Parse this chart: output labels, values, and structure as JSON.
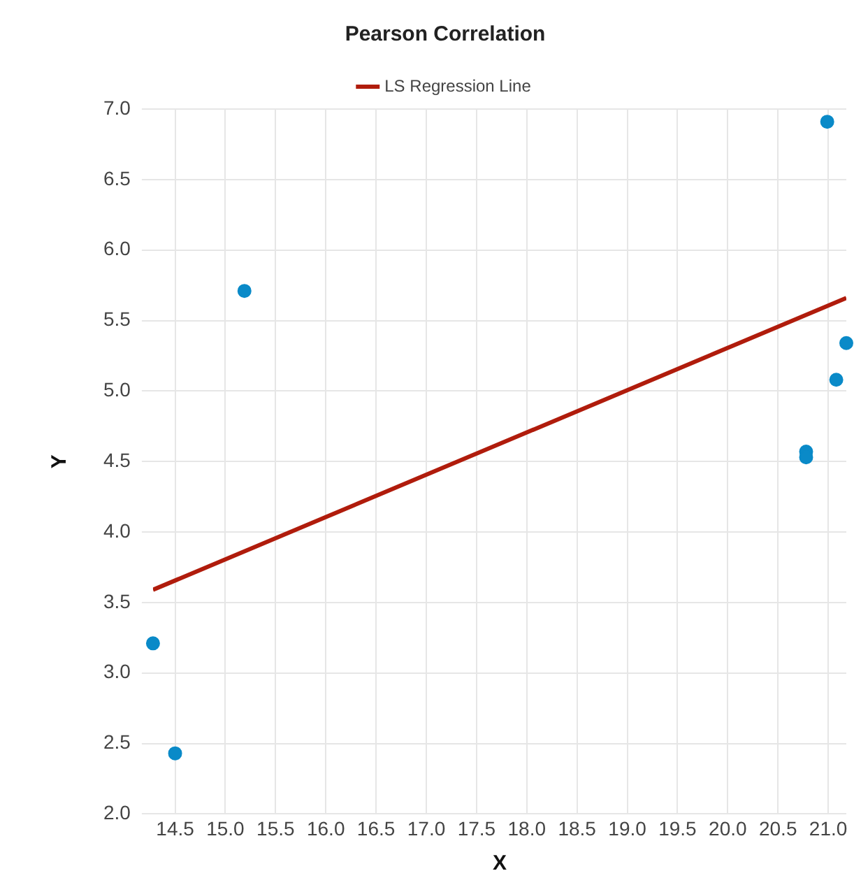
{
  "chart_data": {
    "type": "scatter",
    "title": "Pearson Correlation",
    "xlabel": "X",
    "ylabel": "Y",
    "xlim": [
      14.28,
      21.18
    ],
    "ylim": [
      2,
      7
    ],
    "xticks": [
      14.5,
      {
        "value": 15,
        "label": "15.0"
      },
      15.5,
      {
        "value": 16,
        "label": "16.0"
      },
      16.5,
      {
        "value": 17,
        "label": "17.0"
      },
      17.5,
      {
        "value": 18,
        "label": "18.0"
      },
      18.5,
      {
        "value": 19,
        "label": "19.0"
      },
      19.5,
      {
        "value": 20,
        "label": "20.0"
      },
      20.5,
      {
        "value": 21,
        "label": "21.0"
      }
    ],
    "yticks": [
      {
        "value": 2,
        "label": "2.0"
      },
      2.5,
      {
        "value": 3,
        "label": "3.0"
      },
      3.5,
      {
        "value": 4,
        "label": "4.0"
      },
      4.5,
      {
        "value": 5,
        "label": "5.0"
      },
      5.5,
      {
        "value": 6,
        "label": "6.0"
      },
      6.5,
      {
        "value": 7,
        "label": "7.0"
      }
    ],
    "grid": true,
    "legend": "top",
    "series": [
      {
        "marker": "circle",
        "color": "#0a8ac8",
        "x": [
          14.28,
          14.5,
          15.19,
          20.78,
          20.78,
          21.08,
          21.18,
          20.99
        ],
        "values": [
          3.21,
          2.43,
          5.71,
          4.57,
          4.53,
          5.08,
          5.34,
          6.91
        ]
      },
      {
        "type": "line",
        "marker": "none",
        "name": "LS Regression Line",
        "color": "#b01c0c",
        "x": [
          14.28,
          21.18
        ],
        "values": [
          3.59,
          5.66
        ]
      }
    ]
  }
}
